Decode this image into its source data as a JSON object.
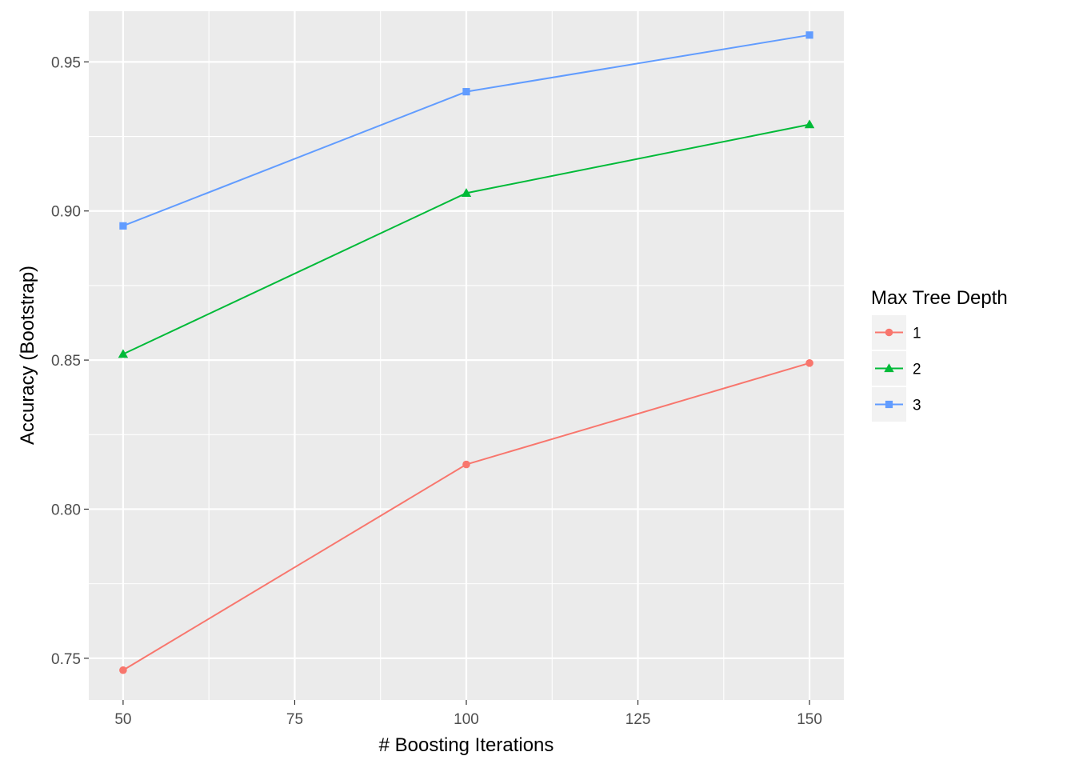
{
  "chart_data": {
    "type": "line",
    "xlabel": "# Boosting Iterations",
    "ylabel": "Accuracy (Bootstrap)",
    "x": [
      50,
      100,
      150
    ],
    "xlim": [
      45,
      155
    ],
    "ylim": [
      0.736,
      0.967
    ],
    "xticks": [
      50,
      75,
      100,
      125,
      150
    ],
    "yticks": [
      0.75,
      0.8,
      0.85,
      0.9,
      0.95
    ],
    "xtick_labels": [
      "50",
      "75",
      "100",
      "125",
      "150"
    ],
    "ytick_labels": [
      "0.75",
      "0.80",
      "0.85",
      "0.90",
      "0.95"
    ],
    "grid": true,
    "legend": {
      "title": "Max Tree Depth",
      "placement": "right"
    },
    "series": [
      {
        "name": "1",
        "marker": "circle",
        "color": "#F8766D",
        "values": [
          0.746,
          0.815,
          0.849
        ]
      },
      {
        "name": "2",
        "marker": "triangle",
        "color": "#00BA38",
        "values": [
          0.852,
          0.906,
          0.929
        ]
      },
      {
        "name": "3",
        "marker": "square",
        "color": "#619CFF",
        "values": [
          0.895,
          0.94,
          0.959
        ]
      }
    ]
  }
}
